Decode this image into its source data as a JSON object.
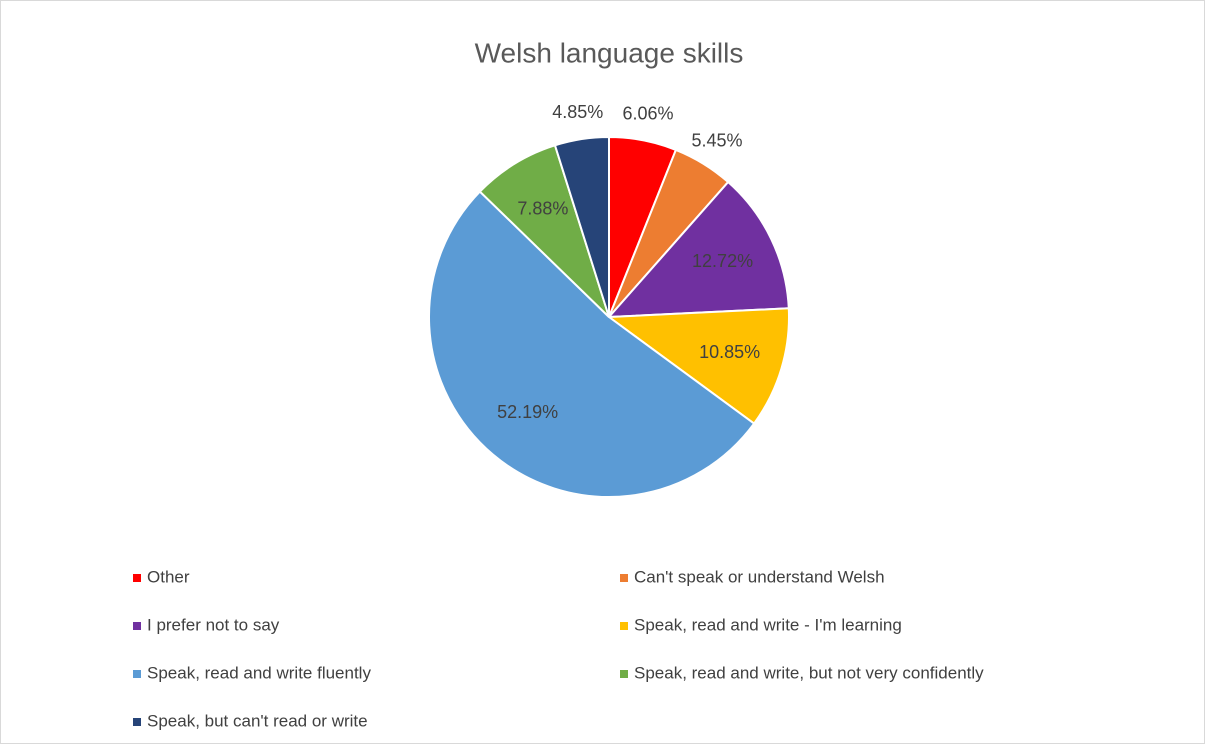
{
  "chart_data": {
    "type": "pie",
    "title": "Welsh language skills",
    "categories": [
      "Other",
      "Can't speak or understand Welsh",
      "I prefer not to say",
      "Speak, read and write - I'm learning",
      "Speak, read and write fluently",
      "Speak, read and write, but not very confidently",
      "Speak, but can't read or write"
    ],
    "values": [
      6.06,
      5.45,
      12.72,
      10.85,
      52.19,
      7.88,
      4.85
    ],
    "value_labels": [
      "6.06%",
      "5.45%",
      "12.72%",
      "10.85%",
      "52.19%",
      "7.88%",
      "4.85%"
    ],
    "colors": [
      "#FF0000",
      "#ED7D31",
      "#7030A0",
      "#FFC000",
      "#5B9BD5",
      "#70AD47",
      "#264478"
    ],
    "legend": "bottom"
  }
}
